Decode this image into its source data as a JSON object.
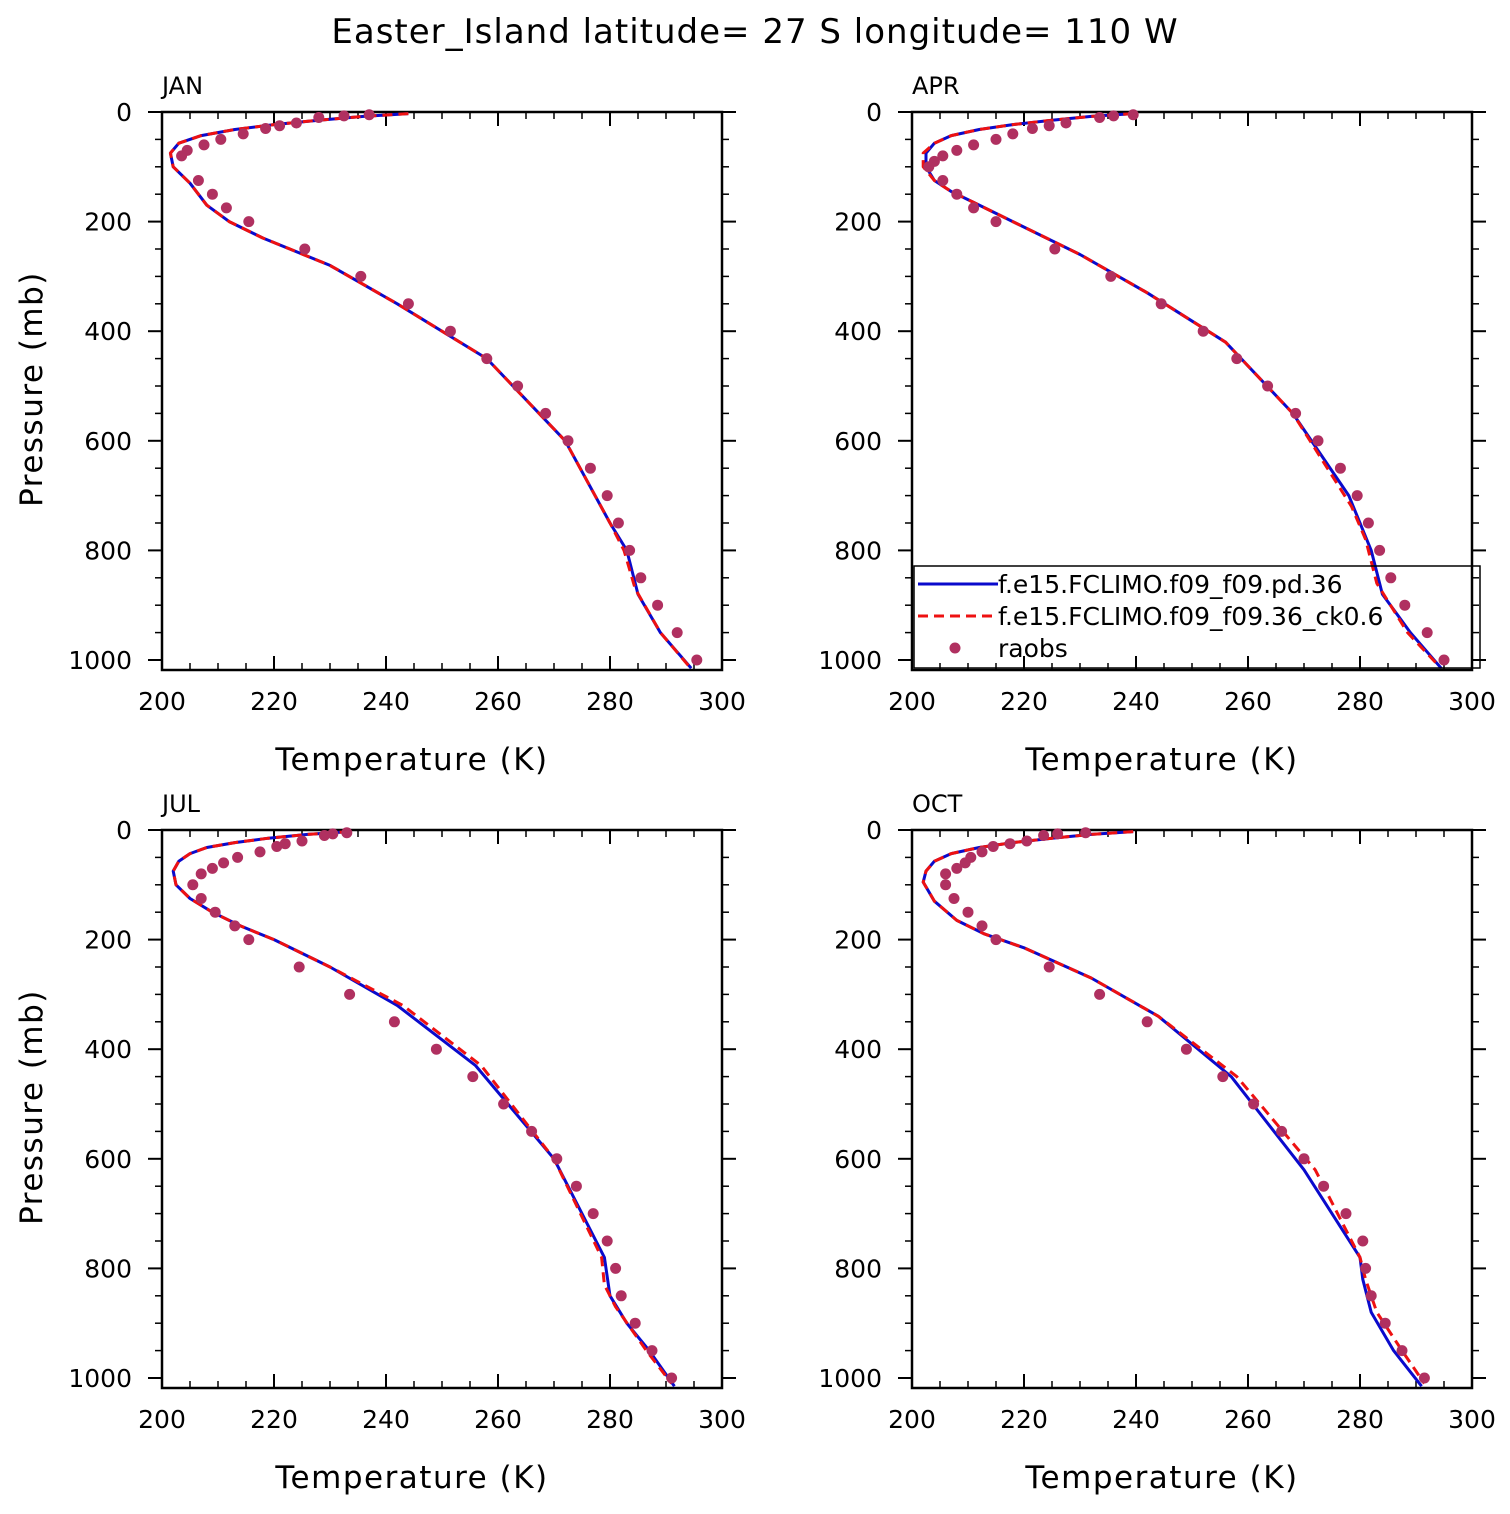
{
  "title": "Easter_Island  latitude= 27 S longitude= 110 W",
  "colors": {
    "model_pd": "#0a0acc",
    "model_ck": "#ee1111",
    "raobs": "#b03060",
    "axes": "#000000"
  },
  "legend": {
    "panel": "APR",
    "entries": [
      {
        "label": "f.e15.FCLIMO.f09_f09.pd.36",
        "style": "solid",
        "color": "#0a0acc"
      },
      {
        "label": "f.e15.FCLIMO.f09_f09.36_ck0.6",
        "style": "dashed",
        "color": "#ee1111"
      },
      {
        "label": "raobs",
        "style": "marker",
        "color": "#b03060"
      }
    ]
  },
  "chart_data": [
    {
      "type": "line",
      "panel_label": "JAN",
      "xlabel": "Temperature (K)",
      "ylabel": "Pressure (mb)",
      "xlim": [
        200,
        300
      ],
      "ylim": [
        1000,
        0
      ],
      "xticks": [
        200,
        220,
        240,
        260,
        280,
        300
      ],
      "yticks": [
        0,
        200,
        400,
        600,
        800,
        1000
      ],
      "series": [
        {
          "name": "f.e15.FCLIMO.f09_f09.pd.36",
          "style": "solid",
          "x": [
            244,
            236,
            228,
            220,
            213,
            207,
            203,
            201.5,
            202,
            205,
            208,
            212,
            218,
            230,
            242,
            258,
            272,
            280,
            283,
            285,
            289,
            294.5
          ],
          "y": [
            3,
            8,
            15,
            23,
            32,
            43,
            57,
            75,
            100,
            130,
            170,
            200,
            230,
            280,
            350,
            450,
            600,
            750,
            800,
            880,
            950,
            1015
          ]
        },
        {
          "name": "f.e15.FCLIMO.f09_f09.36_ck0.6",
          "style": "dashed",
          "x": [
            244,
            236,
            228,
            220,
            213,
            207,
            203,
            201.5,
            202,
            205,
            208,
            212,
            218,
            230,
            242,
            258,
            272,
            280,
            282.5,
            284.5,
            289,
            294
          ],
          "y": [
            3,
            8,
            15,
            23,
            32,
            43,
            57,
            75,
            100,
            130,
            170,
            200,
            230,
            280,
            350,
            450,
            600,
            750,
            800,
            870,
            950,
            1010
          ]
        },
        {
          "name": "raobs",
          "style": "marker",
          "x": [
            237,
            232.5,
            228,
            224,
            221,
            218.5,
            214.5,
            210.5,
            207.5,
            204.5,
            203.5,
            206.5,
            209,
            211.5,
            215.5,
            225.5,
            235.5,
            244,
            251.5,
            258,
            263.5,
            268.5,
            272.5,
            276.5,
            279.5,
            281.5,
            283.5,
            285.5,
            288.5,
            292,
            295.5
          ],
          "y": [
            5,
            7,
            10,
            20,
            25,
            30,
            40,
            50,
            60,
            70,
            80,
            125,
            150,
            175,
            200,
            250,
            300,
            350,
            400,
            450,
            500,
            550,
            600,
            650,
            700,
            750,
            800,
            850,
            900,
            950,
            1000
          ]
        }
      ]
    },
    {
      "type": "line",
      "panel_label": "APR",
      "xlabel": "Temperature (K)",
      "ylabel": "",
      "xlim": [
        200,
        300
      ],
      "ylim": [
        1000,
        0
      ],
      "xticks": [
        200,
        220,
        240,
        260,
        280,
        300
      ],
      "yticks": [
        0,
        200,
        400,
        600,
        800,
        1000
      ],
      "series": [
        {
          "name": "f.e15.FCLIMO.f09_f09.pd.36",
          "style": "solid",
          "x": [
            239.5,
            232,
            225,
            218,
            212,
            207,
            204,
            202.5,
            202.5,
            204,
            207,
            211,
            218,
            230,
            242,
            256,
            268,
            278,
            282,
            284,
            289,
            294.5
          ],
          "y": [
            3,
            8,
            15,
            23,
            32,
            43,
            57,
            75,
            100,
            125,
            145,
            165,
            200,
            260,
            330,
            420,
            550,
            700,
            800,
            880,
            950,
            1015
          ]
        },
        {
          "name": "f.e15.FCLIMO.f09_f09.36_ck0.6",
          "style": "dashed",
          "x": [
            239.5,
            232,
            225,
            218,
            212,
            207,
            204,
            202,
            202,
            204,
            207,
            211,
            218,
            230,
            242,
            256,
            268,
            278.5,
            281,
            283,
            288.5,
            294
          ],
          "y": [
            3,
            8,
            15,
            23,
            32,
            43,
            57,
            75,
            100,
            125,
            145,
            165,
            200,
            260,
            330,
            420,
            550,
            720,
            780,
            860,
            950,
            1010
          ]
        },
        {
          "name": "raobs",
          "style": "marker",
          "x": [
            239.5,
            236,
            233.5,
            227.5,
            224.5,
            221.5,
            218,
            215,
            211,
            208,
            205.5,
            204,
            203,
            205.5,
            208,
            211,
            215,
            225.5,
            235.5,
            244.5,
            252,
            258,
            263.5,
            268.5,
            272.5,
            276.5,
            279.5,
            281.5,
            283.5,
            285.5,
            288,
            292,
            295
          ],
          "y": [
            5,
            7,
            10,
            20,
            25,
            30,
            40,
            50,
            60,
            70,
            80,
            90,
            100,
            125,
            150,
            175,
            200,
            250,
            300,
            350,
            400,
            450,
            500,
            550,
            600,
            650,
            700,
            750,
            800,
            850,
            900,
            950,
            1000
          ]
        }
      ]
    },
    {
      "type": "line",
      "panel_label": "JUL",
      "xlabel": "Temperature (K)",
      "ylabel": "Pressure (mb)",
      "xlim": [
        200,
        300
      ],
      "ylim": [
        1000,
        0
      ],
      "xticks": [
        200,
        220,
        240,
        260,
        280,
        300
      ],
      "yticks": [
        0,
        200,
        400,
        600,
        800,
        1000
      ],
      "series": [
        {
          "name": "f.e15.FCLIMO.f09_f09.pd.36",
          "style": "solid",
          "x": [
            233.5,
            226,
            219,
            213,
            208,
            205,
            203,
            202,
            202.5,
            205,
            209,
            214,
            220,
            230,
            242,
            256,
            270,
            279,
            280,
            283,
            287,
            291.5
          ],
          "y": [
            3,
            8,
            15,
            23,
            32,
            43,
            57,
            75,
            100,
            125,
            150,
            175,
            200,
            250,
            320,
            430,
            600,
            780,
            850,
            900,
            950,
            1015
          ]
        },
        {
          "name": "f.e15.FCLIMO.f09_f09.36_ck0.6",
          "style": "dashed",
          "x": [
            233.5,
            226,
            219,
            213,
            208,
            205,
            203,
            202,
            202.5,
            205,
            209,
            214,
            220,
            230,
            243,
            257,
            270,
            278.5,
            279,
            281,
            286.5,
            291
          ],
          "y": [
            3,
            8,
            15,
            23,
            32,
            43,
            57,
            75,
            100,
            125,
            150,
            175,
            200,
            250,
            320,
            430,
            600,
            780,
            830,
            870,
            950,
            1010
          ]
        },
        {
          "name": "raobs",
          "style": "marker",
          "x": [
            233,
            230.5,
            229,
            225,
            222,
            220.5,
            217.5,
            213.5,
            211,
            209,
            207,
            205.5,
            207,
            209.5,
            213,
            215.5,
            224.5,
            233.5,
            241.5,
            249,
            255.5,
            261,
            266,
            270.5,
            274,
            277,
            279.5,
            281,
            282,
            284.5,
            287.5,
            291
          ],
          "y": [
            5,
            7,
            10,
            20,
            25,
            30,
            40,
            50,
            60,
            70,
            80,
            100,
            125,
            150,
            175,
            200,
            250,
            300,
            350,
            400,
            450,
            500,
            550,
            600,
            650,
            700,
            750,
            800,
            850,
            900,
            950,
            1000
          ]
        }
      ]
    },
    {
      "type": "line",
      "panel_label": "OCT",
      "xlabel": "Temperature (K)",
      "ylabel": "",
      "xlim": [
        200,
        300
      ],
      "ylim": [
        1000,
        0
      ],
      "xticks": [
        200,
        220,
        240,
        260,
        280,
        300
      ],
      "yticks": [
        0,
        200,
        400,
        600,
        800,
        1000
      ],
      "series": [
        {
          "name": "f.e15.FCLIMO.f09_f09.pd.36",
          "style": "solid",
          "x": [
            239.5,
            232,
            225,
            218,
            212,
            207,
            204,
            202.5,
            202,
            204,
            208,
            213,
            220,
            232,
            244,
            257,
            270,
            280,
            280.5,
            282,
            286,
            291
          ],
          "y": [
            3,
            8,
            15,
            23,
            32,
            43,
            57,
            75,
            95,
            130,
            165,
            190,
            215,
            270,
            340,
            450,
            620,
            780,
            820,
            880,
            950,
            1015
          ]
        },
        {
          "name": "f.e15.FCLIMO.f09_f09.36_ck0.6",
          "style": "dashed",
          "x": [
            239.5,
            232,
            225,
            218,
            212,
            207,
            204,
            202.5,
            202,
            204,
            208,
            213,
            220,
            232,
            244,
            258,
            272,
            280,
            281,
            283,
            287.5,
            291.5
          ],
          "y": [
            3,
            8,
            15,
            23,
            32,
            43,
            57,
            75,
            95,
            130,
            165,
            190,
            215,
            270,
            340,
            450,
            620,
            780,
            820,
            880,
            950,
            1010
          ]
        },
        {
          "name": "raobs",
          "style": "marker",
          "x": [
            231,
            226,
            223.5,
            220.5,
            217.5,
            214.5,
            212.5,
            210.5,
            209.5,
            208,
            206,
            206,
            207.5,
            210,
            212.5,
            215,
            224.5,
            233.5,
            242,
            249,
            255.5,
            261,
            266,
            270,
            273.5,
            277.5,
            280.5,
            281,
            282,
            284.5,
            287.5,
            291.5
          ],
          "y": [
            5,
            7,
            10,
            20,
            25,
            30,
            40,
            50,
            60,
            70,
            80,
            100,
            125,
            150,
            175,
            200,
            250,
            300,
            350,
            400,
            450,
            500,
            550,
            600,
            650,
            700,
            750,
            800,
            850,
            900,
            950,
            1000
          ]
        }
      ]
    }
  ]
}
